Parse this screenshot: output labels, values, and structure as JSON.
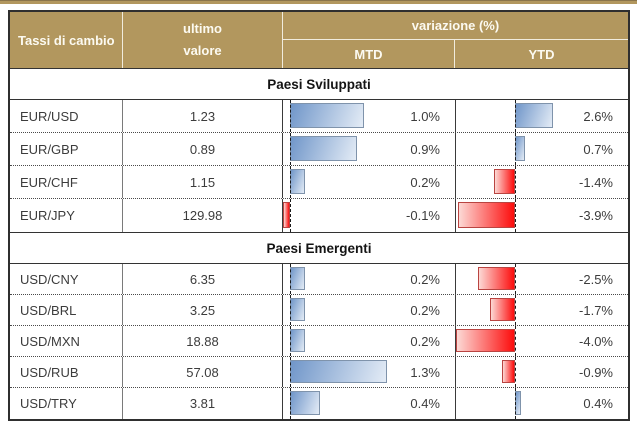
{
  "header": {
    "pair_label": "Tassi di cambio",
    "value_label_line1": "ultimo",
    "value_label_line2": "valore",
    "variation_label": "variazione (%)",
    "mtd_label": "MTD",
    "ytd_label": "YTD"
  },
  "colors": {
    "header-bg": "#b2975e",
    "header-text": "#fcfaf1",
    "table-border": "#2f2f2f",
    "row-text": "#3c3c3c",
    "positive-bar-start": "#7096c9",
    "positive-bar-end": "#e4ecf6",
    "positive-bar-border": "#7f93ab",
    "negative-bar-start": "#fc0d0d",
    "negative-bar-end": "#fcd9d5",
    "negative-bar-border": "#b94441"
  },
  "chart_data": {
    "type": "table",
    "title": "Tassi di cambio",
    "columns": [
      "Tassi di cambio",
      "ultimo valore",
      "variazione (%) MTD",
      "variazione (%) YTD"
    ],
    "bar_axes": {
      "mtd": {
        "min": -0.1,
        "max": 1.3
      },
      "ytd": {
        "min": -4.0,
        "max": 2.6
      }
    },
    "sections": [
      {
        "label": "Paesi Sviluppati",
        "rows": [
          {
            "pair": "EUR/USD",
            "value": "1.23",
            "mtd": 1.0,
            "mtd_label": "1.0%",
            "ytd": 2.6,
            "ytd_label": "2.6%"
          },
          {
            "pair": "EUR/GBP",
            "value": "0.89",
            "mtd": 0.9,
            "mtd_label": "0.9%",
            "ytd": 0.7,
            "ytd_label": "0.7%"
          },
          {
            "pair": "EUR/CHF",
            "value": "1.15",
            "mtd": 0.2,
            "mtd_label": "0.2%",
            "ytd": -1.4,
            "ytd_label": "-1.4%"
          },
          {
            "pair": "EUR/JPY",
            "value": "129.98",
            "mtd": -0.1,
            "mtd_label": "-0.1%",
            "ytd": -3.9,
            "ytd_label": "-3.9%"
          }
        ]
      },
      {
        "label": "Paesi Emergenti",
        "rows": [
          {
            "pair": "USD/CNY",
            "value": "6.35",
            "mtd": 0.2,
            "mtd_label": "0.2%",
            "ytd": -2.5,
            "ytd_label": "-2.5%"
          },
          {
            "pair": "USD/BRL",
            "value": "3.25",
            "mtd": 0.2,
            "mtd_label": "0.2%",
            "ytd": -1.7,
            "ytd_label": "-1.7%"
          },
          {
            "pair": "USD/MXN",
            "value": "18.88",
            "mtd": 0.2,
            "mtd_label": "0.2%",
            "ytd": -4.0,
            "ytd_label": "-4.0%"
          },
          {
            "pair": "USD/RUB",
            "value": "57.08",
            "mtd": 1.3,
            "mtd_label": "1.3%",
            "ytd": -0.9,
            "ytd_label": "-0.9%"
          },
          {
            "pair": "USD/TRY",
            "value": "3.81",
            "mtd": 0.4,
            "mtd_label": "0.4%",
            "ytd": 0.4,
            "ytd_label": "0.4%"
          }
        ]
      }
    ]
  }
}
